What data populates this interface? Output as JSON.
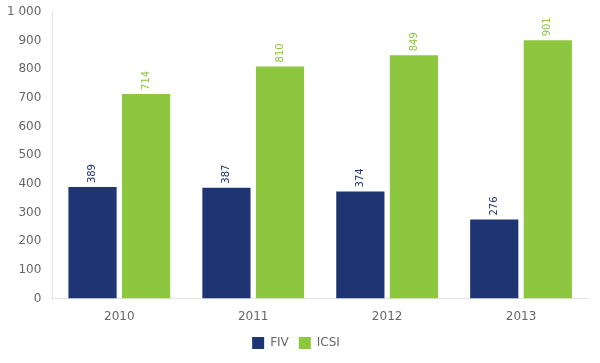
{
  "chart_data": {
    "type": "bar",
    "categories": [
      "2010",
      "2011",
      "2012",
      "2013"
    ],
    "series": [
      {
        "name": "FIV",
        "color": "#1F3472",
        "values": [
          389,
          387,
          374,
          276
        ]
      },
      {
        "name": "ICSI",
        "color": "#8DC63F",
        "values": [
          714,
          810,
          849,
          901
        ]
      }
    ],
    "ylim": [
      0,
      1000
    ],
    "yticks": [
      0,
      100,
      200,
      300,
      400,
      500,
      600,
      700,
      800,
      900,
      {
        "value": 1000,
        "label": "1 000"
      }
    ],
    "grid": false,
    "legend": "bottom",
    "data_labels": true
  }
}
